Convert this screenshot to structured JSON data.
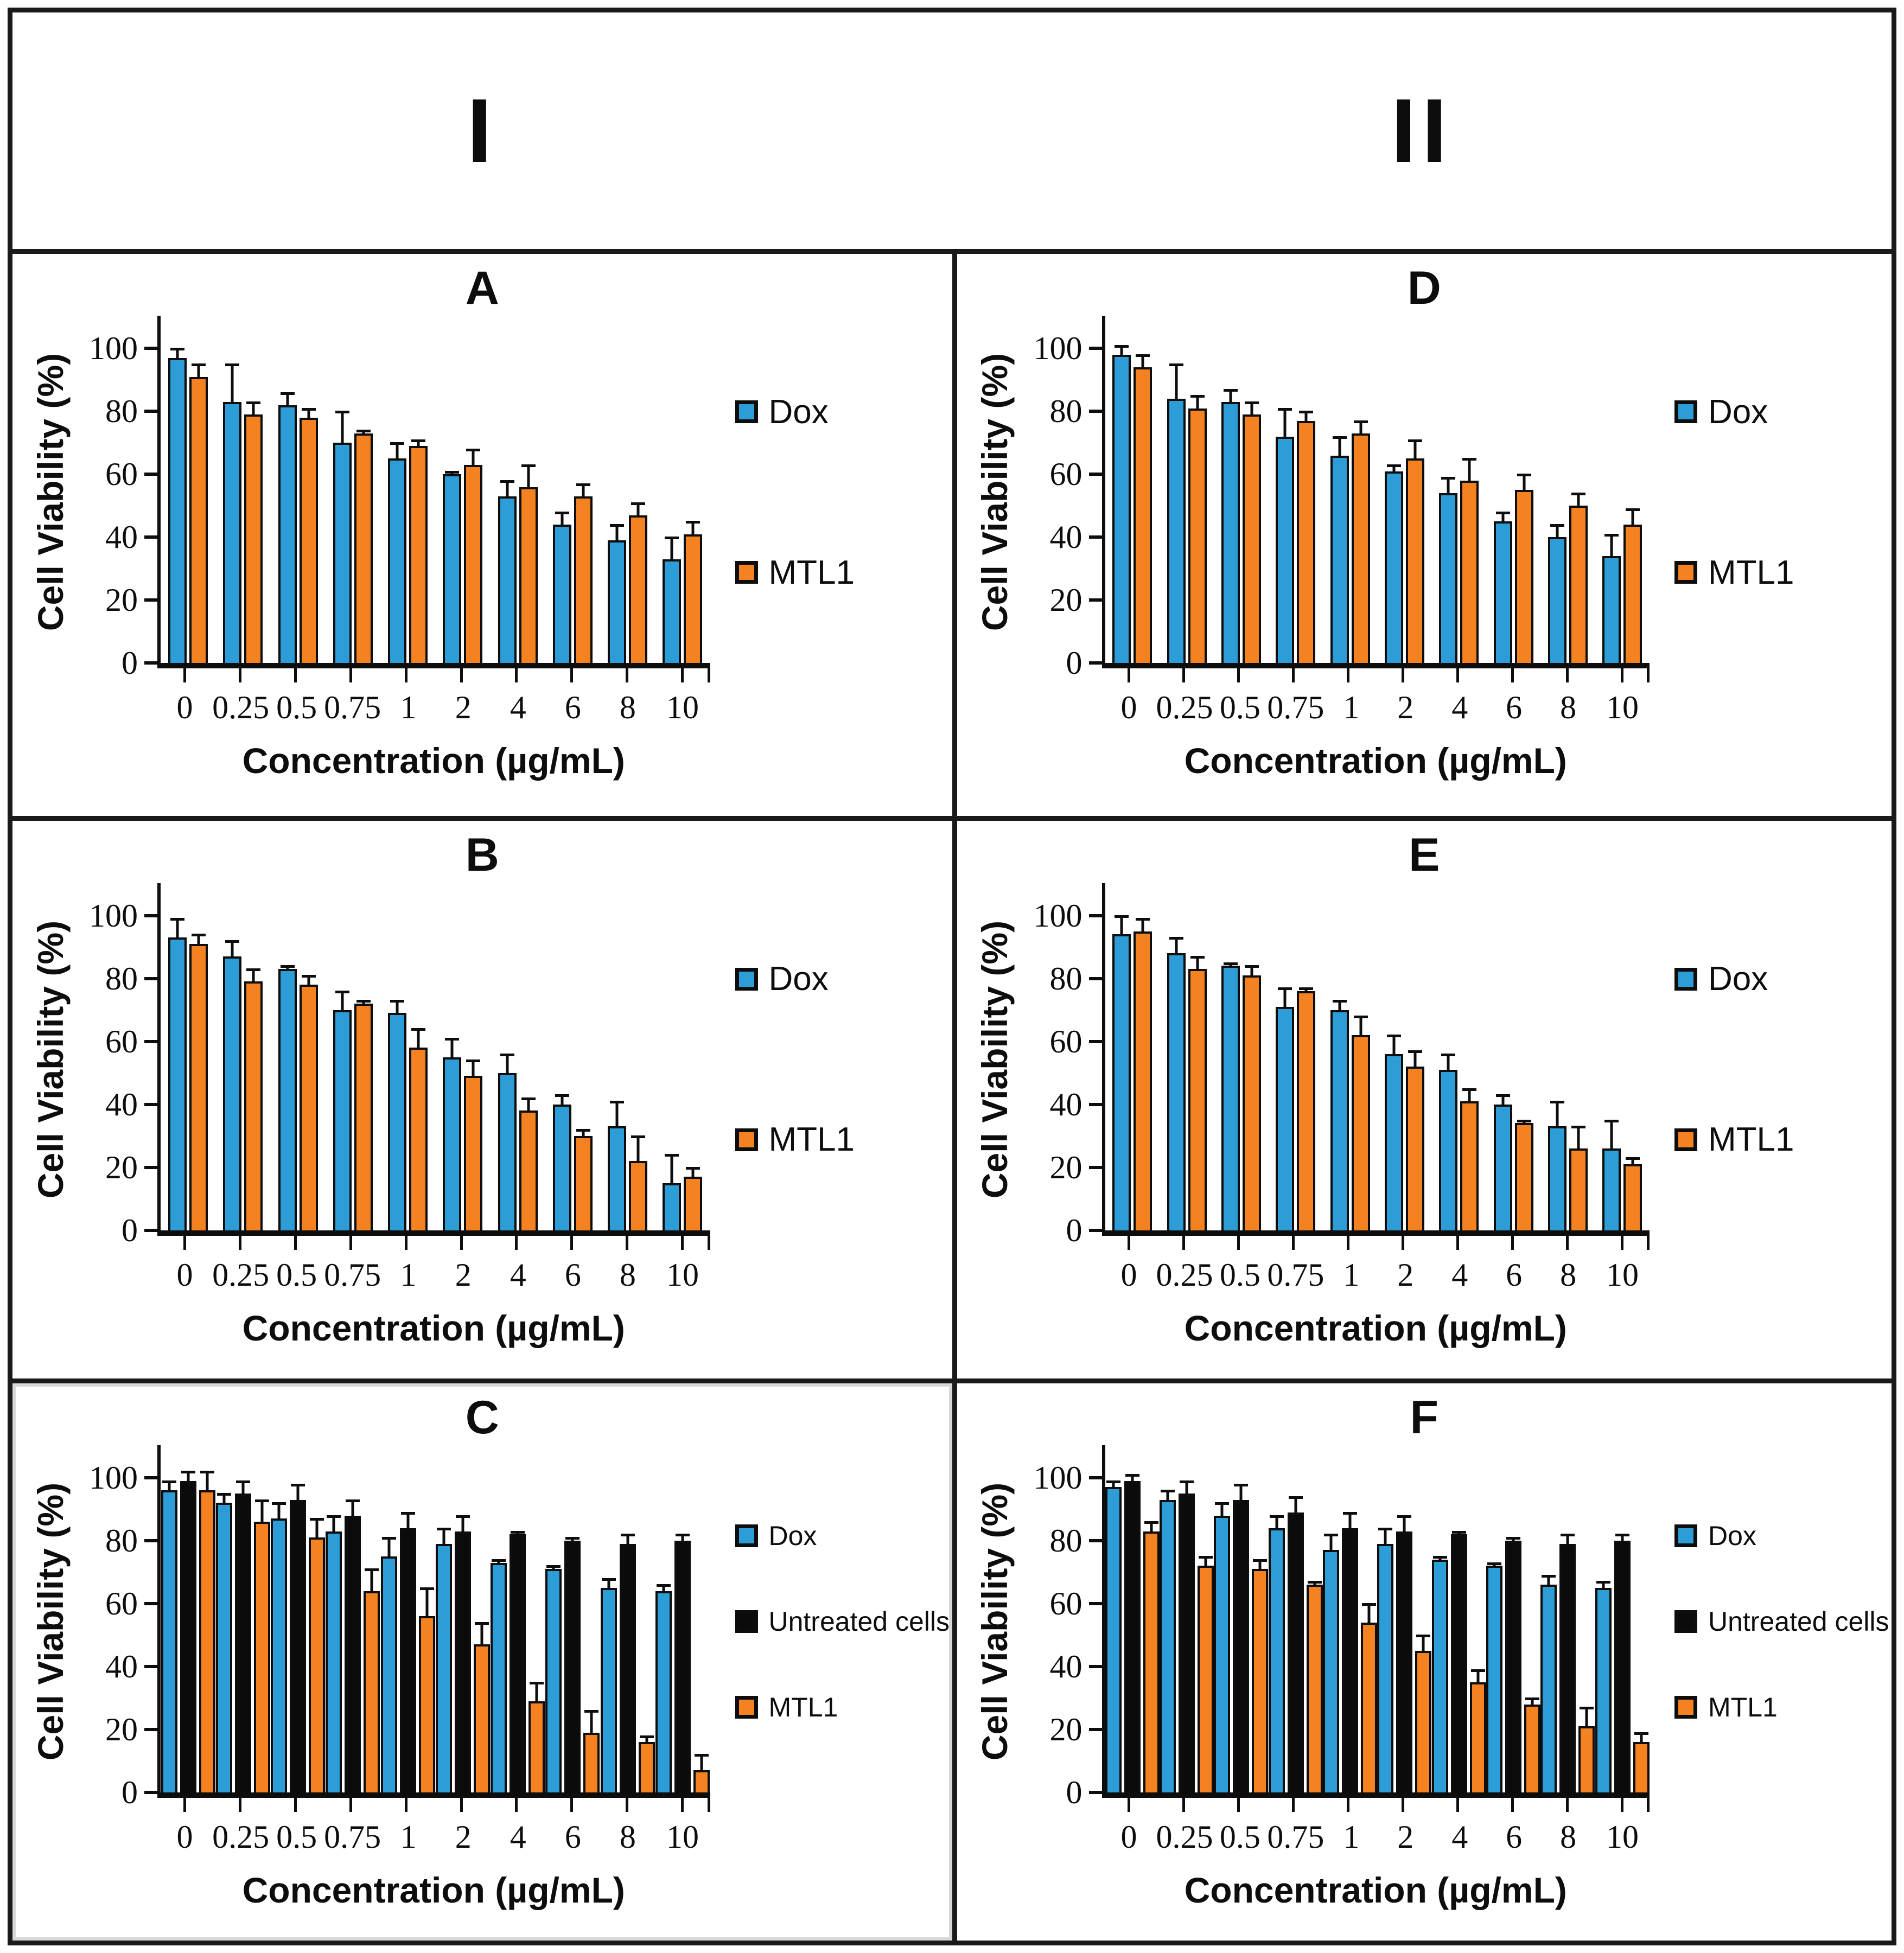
{
  "figure": {
    "column_headers": [
      {
        "label": "I"
      },
      {
        "label": "II"
      }
    ],
    "ylabel": "Cell Viability (%)",
    "xlabel": "Concentration (µg/mL)",
    "yticks": [
      0,
      20,
      40,
      60,
      80,
      100
    ],
    "ylim": [
      0,
      100
    ],
    "legend_position": "right",
    "colors": {
      "dox": "#2D9DD7",
      "untreated_cells": "#0b0b0b",
      "mtl1": "#F58220"
    }
  },
  "chart_data": [
    {
      "id": "A",
      "type": "bar",
      "title": "A",
      "column": "I",
      "xlabel": "Concentration (µg/mL)",
      "ylabel": "Cell Viability (%)",
      "ylim": [
        0,
        100
      ],
      "categories": [
        "0",
        "0.25",
        "0.5",
        "0.75",
        "1",
        "2",
        "4",
        "6",
        "8",
        "10"
      ],
      "series": [
        {
          "name": "Dox",
          "color": "#2D9DD7",
          "values": [
            97,
            83,
            82,
            70,
            65,
            60,
            53,
            44,
            39,
            33
          ],
          "errors": [
            3,
            12,
            4,
            10,
            5,
            1,
            5,
            4,
            5,
            7
          ]
        },
        {
          "name": "MTL1",
          "color": "#F58220",
          "values": [
            91,
            79,
            78,
            73,
            69,
            63,
            56,
            53,
            47,
            41
          ],
          "errors": [
            4,
            4,
            3,
            1,
            2,
            5,
            7,
            4,
            4,
            4
          ]
        }
      ]
    },
    {
      "id": "D",
      "type": "bar",
      "title": "D",
      "column": "II",
      "xlabel": "Concentration (µg/mL)",
      "ylabel": "Cell Viability (%)",
      "ylim": [
        0,
        100
      ],
      "categories": [
        "0",
        "0.25",
        "0.5",
        "0.75",
        "1",
        "2",
        "4",
        "6",
        "8",
        "10"
      ],
      "series": [
        {
          "name": "Dox",
          "color": "#2D9DD7",
          "values": [
            98,
            84,
            83,
            72,
            66,
            61,
            54,
            45,
            40,
            34
          ],
          "errors": [
            3,
            11,
            4,
            9,
            6,
            2,
            5,
            3,
            4,
            7
          ]
        },
        {
          "name": "MTL1",
          "color": "#F58220",
          "values": [
            94,
            81,
            79,
            77,
            73,
            65,
            58,
            55,
            50,
            44
          ],
          "errors": [
            4,
            4,
            4,
            3,
            4,
            6,
            7,
            5,
            4,
            5
          ]
        }
      ]
    },
    {
      "id": "B",
      "type": "bar",
      "title": "B",
      "column": "I",
      "xlabel": "Concentration (µg/mL)",
      "ylabel": "Cell Viability (%)",
      "ylim": [
        0,
        100
      ],
      "categories": [
        "0",
        "0.25",
        "0.5",
        "0.75",
        "1",
        "2",
        "4",
        "6",
        "8",
        "10"
      ],
      "series": [
        {
          "name": "Dox",
          "color": "#2D9DD7",
          "values": [
            93,
            87,
            83,
            70,
            69,
            55,
            50,
            40,
            33,
            15
          ],
          "errors": [
            6,
            5,
            1,
            6,
            4,
            6,
            6,
            3,
            8,
            9
          ]
        },
        {
          "name": "MTL1",
          "color": "#F58220",
          "values": [
            91,
            79,
            78,
            72,
            58,
            49,
            38,
            30,
            22,
            17
          ],
          "errors": [
            3,
            4,
            3,
            1,
            6,
            5,
            4,
            2,
            8,
            3
          ]
        }
      ]
    },
    {
      "id": "E",
      "type": "bar",
      "title": "E",
      "column": "II",
      "xlabel": "Concentration (µg/mL)",
      "ylabel": "Cell Viability (%)",
      "ylim": [
        0,
        100
      ],
      "categories": [
        "0",
        "0.25",
        "0.5",
        "0.75",
        "1",
        "2",
        "4",
        "6",
        "8",
        "10"
      ],
      "series": [
        {
          "name": "Dox",
          "color": "#2D9DD7",
          "values": [
            94,
            88,
            84,
            71,
            70,
            56,
            51,
            40,
            33,
            26
          ],
          "errors": [
            6,
            5,
            1,
            6,
            3,
            6,
            5,
            3,
            8,
            9
          ]
        },
        {
          "name": "MTL1",
          "color": "#F58220",
          "values": [
            95,
            83,
            81,
            76,
            62,
            52,
            41,
            34,
            26,
            21
          ],
          "errors": [
            4,
            4,
            3,
            1,
            6,
            5,
            4,
            1,
            7,
            2
          ]
        }
      ]
    },
    {
      "id": "C",
      "type": "bar",
      "title": "C",
      "column": "I",
      "xlabel": "Concentration (µg/mL)",
      "ylabel": "Cell Viability (%)",
      "ylim": [
        0,
        100
      ],
      "categories": [
        "0",
        "0.25",
        "0.5",
        "0.75",
        "1",
        "2",
        "4",
        "6",
        "8",
        "10"
      ],
      "series": [
        {
          "name": "Dox",
          "color": "#2D9DD7",
          "values": [
            96,
            92,
            87,
            83,
            75,
            79,
            73,
            71,
            65,
            64
          ],
          "errors": [
            3,
            3,
            5,
            5,
            6,
            5,
            1,
            1,
            3,
            2
          ]
        },
        {
          "name": "Untreated cells",
          "color": "#0b0b0b",
          "values": [
            99,
            95,
            93,
            88,
            84,
            83,
            82,
            80,
            79,
            80
          ],
          "errors": [
            3,
            4,
            5,
            5,
            5,
            5,
            1,
            1,
            3,
            2
          ]
        },
        {
          "name": "MTL1",
          "color": "#F58220",
          "values": [
            96,
            86,
            81,
            64,
            56,
            47,
            29,
            19,
            16,
            7
          ],
          "errors": [
            6,
            7,
            6,
            7,
            9,
            7,
            6,
            7,
            2,
            5
          ]
        }
      ]
    },
    {
      "id": "F",
      "type": "bar",
      "title": "F",
      "column": "II",
      "xlabel": "Concentration (µg/mL)",
      "ylabel": "Cell Viability (%)",
      "ylim": [
        0,
        100
      ],
      "categories": [
        "0",
        "0.25",
        "0.5",
        "0.75",
        "1",
        "2",
        "4",
        "6",
        "8",
        "10"
      ],
      "series": [
        {
          "name": "Dox",
          "color": "#2D9DD7",
          "values": [
            97,
            93,
            88,
            84,
            77,
            79,
            74,
            72,
            66,
            65
          ],
          "errors": [
            2,
            3,
            4,
            4,
            5,
            5,
            1,
            1,
            3,
            2
          ]
        },
        {
          "name": "Untreated cells",
          "color": "#0b0b0b",
          "values": [
            99,
            95,
            93,
            89,
            84,
            83,
            82,
            80,
            79,
            80
          ],
          "errors": [
            2,
            4,
            5,
            5,
            5,
            5,
            1,
            1,
            3,
            2
          ]
        },
        {
          "name": "MTL1",
          "color": "#F58220",
          "values": [
            83,
            72,
            71,
            66,
            54,
            45,
            35,
            28,
            21,
            16
          ],
          "errors": [
            3,
            3,
            3,
            1,
            6,
            5,
            4,
            2,
            6,
            3
          ]
        }
      ]
    }
  ]
}
